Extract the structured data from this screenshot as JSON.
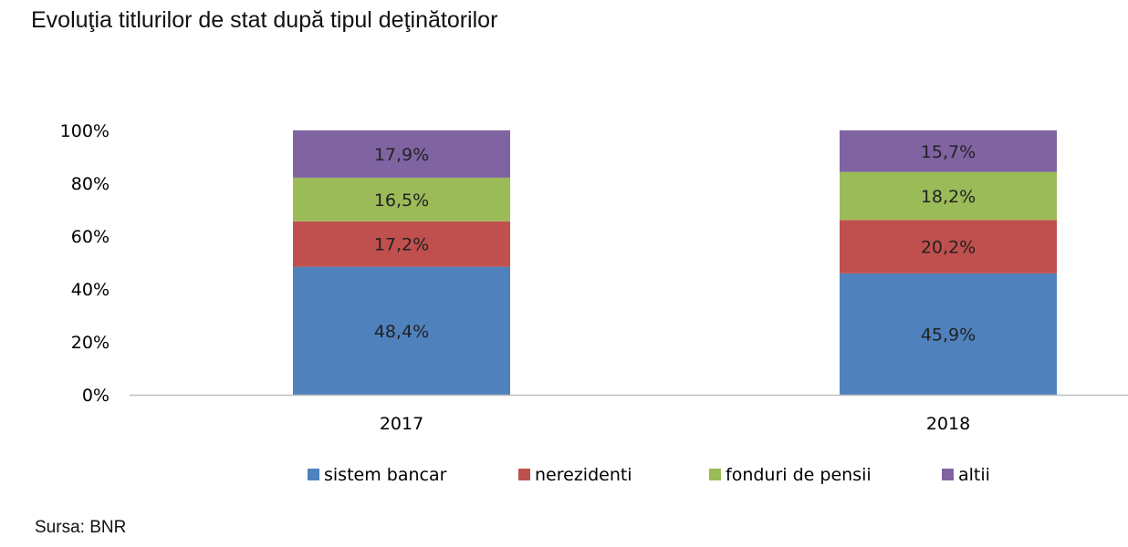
{
  "chart_data": {
    "type": "bar",
    "stacked": true,
    "percent": true,
    "title": "Evoluţia titlurilor de stat după tipul deţinătorilor",
    "categories": [
      "2017",
      "2018"
    ],
    "series": [
      {
        "name": "sistem bancar",
        "color": "#4F81BD",
        "values": [
          48.4,
          45.9
        ],
        "labels": [
          "48,4%",
          "45,9%"
        ]
      },
      {
        "name": "nerezidenti",
        "color": "#C0504D",
        "values": [
          17.2,
          20.2
        ],
        "labels": [
          "17,2%",
          "20,2%"
        ]
      },
      {
        "name": "fonduri de pensii",
        "color": "#9BBB59",
        "values": [
          16.5,
          18.2
        ],
        "labels": [
          "16,5%",
          "18,2%"
        ]
      },
      {
        "name": "altii",
        "color": "#8064A2",
        "values": [
          17.9,
          15.7
        ],
        "labels": [
          "17,9%",
          "15,7%"
        ]
      }
    ],
    "ylim": [
      0,
      100
    ],
    "yticks": [
      "0%",
      "20%",
      "40%",
      "60%",
      "80%",
      "100%"
    ],
    "grid": false,
    "legend_position": "bottom"
  },
  "source_note": "Sursa: BNR"
}
